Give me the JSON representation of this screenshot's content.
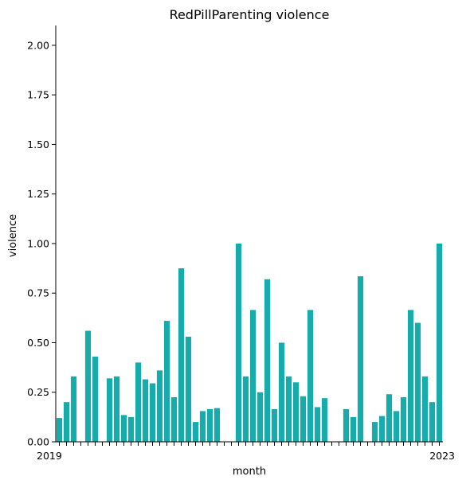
{
  "chart_data": {
    "type": "bar",
    "title": "RedPillParenting violence",
    "xlabel": "month",
    "ylabel": "violence",
    "ylim": [
      0,
      2.1
    ],
    "yticks": [
      "0.00",
      "0.25",
      "0.50",
      "0.75",
      "1.00",
      "1.25",
      "1.50",
      "1.75",
      "2.00"
    ],
    "x_tick_first": "2019",
    "x_tick_last": "2023",
    "values": [
      0.12,
      0.2,
      0.33,
      0,
      0.56,
      0.43,
      0,
      0.32,
      0.33,
      0.135,
      0.125,
      0.4,
      0.315,
      0.295,
      0.36,
      0.61,
      0.225,
      0.875,
      0.53,
      0.1,
      0.155,
      0.165,
      0.17,
      0,
      0,
      1.0,
      0.33,
      0.665,
      0.25,
      0.82,
      0.165,
      0.5,
      0.33,
      0.3,
      0.23,
      0.665,
      0.175,
      0.22,
      0,
      0,
      0.165,
      0.125,
      0.835,
      0,
      0.1,
      0.13,
      0.24,
      0.155,
      0.225,
      0.665,
      0.6,
      0.33,
      0.2,
      1.0
    ],
    "bar_color": "#17abab",
    "grid": false
  }
}
